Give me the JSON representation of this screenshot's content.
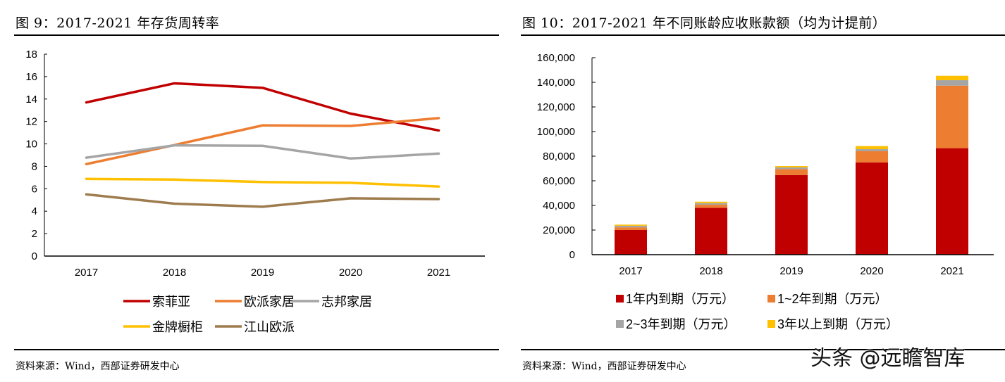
{
  "chart_data": [
    {
      "type": "line",
      "title": "图 9：2017-2021 年存货周转率",
      "categories": [
        "2017",
        "2018",
        "2019",
        "2020",
        "2021"
      ],
      "ylim": [
        0,
        18
      ],
      "yticks": [
        "0",
        "2",
        "4",
        "6",
        "8",
        "10",
        "12",
        "14",
        "16",
        "18"
      ],
      "grid": false,
      "legend": "bottom",
      "series": [
        {
          "name": "索菲亚",
          "color": "#C00000",
          "values": [
            13.7,
            15.4,
            15.0,
            12.7,
            11.2
          ]
        },
        {
          "name": "欧派家居",
          "color": "#ED7D31",
          "values": [
            8.2,
            9.9,
            11.65,
            11.6,
            12.3
          ]
        },
        {
          "name": "志邦家居",
          "color": "#A5A5A5",
          "values": [
            8.77,
            9.87,
            9.83,
            8.7,
            9.14
          ]
        },
        {
          "name": "金牌橱柜",
          "color": "#FFC000",
          "values": [
            6.88,
            6.82,
            6.6,
            6.53,
            6.2
          ]
        },
        {
          "name": "江山欧派",
          "color": "#9E7C4E",
          "values": [
            5.5,
            4.67,
            4.4,
            5.15,
            5.08
          ]
        }
      ],
      "source": "资料来源：Wind，西部证券研发中心"
    },
    {
      "type": "bar",
      "stacked": true,
      "title": "图 10：2017-2021 年不同账龄应收账款额（均为计提前）",
      "categories": [
        "2017",
        "2018",
        "2019",
        "2020",
        "2021"
      ],
      "ylim": [
        0,
        160000
      ],
      "yticks": [
        "0",
        "20,000",
        "40,000",
        "60,000",
        "80,000",
        "100,000",
        "120,000",
        "140,000",
        "160,000"
      ],
      "grid": false,
      "legend": "bottom",
      "series": [
        {
          "name": "1年内到期（万元）",
          "color": "#C00000",
          "values": [
            20000,
            38100,
            64700,
            74900,
            86500
          ]
        },
        {
          "name": "1~2年到期（万元）",
          "color": "#ED7D31",
          "values": [
            2200,
            2500,
            4800,
            9100,
            50800
          ]
        },
        {
          "name": "2~3年到期（万元）",
          "color": "#A5A5A5",
          "values": [
            1300,
            1300,
            1400,
            1700,
            4400
          ]
        },
        {
          "name": "3年以上到期（万元）",
          "color": "#FFC000",
          "values": [
            900,
            1100,
            1100,
            2500,
            3600
          ]
        }
      ],
      "source": "资料来源：Wind，西部证券研发中心"
    }
  ],
  "watermark": "头条 @远瞻智库"
}
